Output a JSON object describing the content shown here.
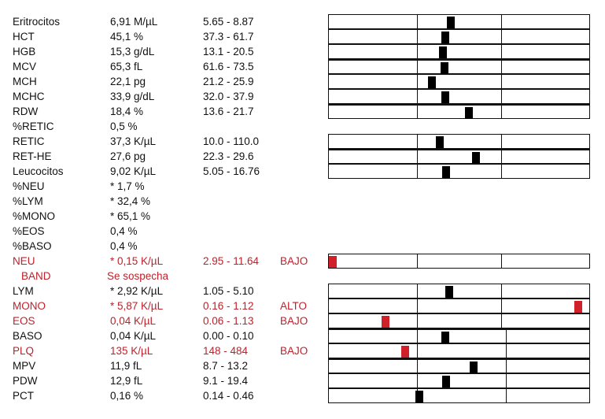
{
  "rows": [
    {
      "name": "Eritrocitos",
      "value": "6,91 M/µL",
      "ref": "5.65 - 8.87",
      "flag": "",
      "abnormal": false,
      "bar": true,
      "pos": 0.468
    },
    {
      "name": "HCT",
      "value": "45,1 %",
      "ref": "37.3 - 61.7",
      "flag": "",
      "abnormal": false,
      "bar": true,
      "pos": 0.447
    },
    {
      "name": "HGB",
      "value": "15,3 g/dL",
      "ref": "13.1 - 20.5",
      "flag": "",
      "abnormal": false,
      "bar": true,
      "pos": 0.435
    },
    {
      "name": "MCV",
      "value": "65,3 fL",
      "ref": "61.6 - 73.5",
      "flag": "",
      "abnormal": false,
      "bar": true,
      "pos": 0.441
    },
    {
      "name": "MCH",
      "value": "22,1 pg",
      "ref": "21.2 - 25.9",
      "flag": "",
      "abnormal": false,
      "bar": true,
      "pos": 0.393
    },
    {
      "name": "MCHC",
      "value": "33,9 g/dL",
      "ref": "32.0 - 37.9",
      "flag": "",
      "abnormal": false,
      "bar": true,
      "pos": 0.447
    },
    {
      "name": "RDW",
      "value": "18,4 %",
      "ref": "13.6 - 21.7",
      "flag": "",
      "abnormal": false,
      "bar": true,
      "pos": 0.538
    },
    {
      "name": "%RETIC",
      "value": "0,5 %",
      "ref": "",
      "flag": "",
      "abnormal": false,
      "bar": false
    },
    {
      "name": "RETIC",
      "value": "37,3 K/µL",
      "ref": "10.0 - 110.0",
      "flag": "",
      "abnormal": false,
      "bar": true,
      "pos": 0.423
    },
    {
      "name": "RET-HE",
      "value": "27,6 pg",
      "ref": "22.3 - 29.6",
      "flag": "",
      "abnormal": false,
      "bar": true,
      "pos": 0.568
    },
    {
      "name": "Leucocitos",
      "value": "9,02 K/µL",
      "ref": "5.05 - 16.76",
      "flag": "",
      "abnormal": false,
      "bar": true,
      "pos": 0.45
    },
    {
      "name": "%NEU",
      "value": "* 1,7 %",
      "ref": "",
      "flag": "",
      "abnormal": false,
      "bar": false
    },
    {
      "name": "%LYM",
      "value": "* 32,4 %",
      "ref": "",
      "flag": "",
      "abnormal": false,
      "bar": false
    },
    {
      "name": "%MONO",
      "value": "* 65,1 %",
      "ref": "",
      "flag": "",
      "abnormal": false,
      "bar": false
    },
    {
      "name": "%EOS",
      "value": "0,4 %",
      "ref": "",
      "flag": "",
      "abnormal": false,
      "bar": false
    },
    {
      "name": "%BASO",
      "value": "0,4 %",
      "ref": "",
      "flag": "",
      "abnormal": false,
      "bar": false
    },
    {
      "name": "NEU",
      "value": "* 0,15 K/µL",
      "ref": "2.95 - 11.64",
      "flag": "BAJO",
      "abnormal": true,
      "bar": true,
      "pos": 0.0
    },
    {
      "name": "BAND",
      "value": "Se sospecha",
      "ref": "",
      "flag": "",
      "abnormal": true,
      "bar": false,
      "indent": true
    },
    {
      "name": "LYM",
      "value": "* 2,92 K/µL",
      "ref": "1.05 - 5.10",
      "flag": "",
      "abnormal": false,
      "bar": true,
      "pos": 0.462
    },
    {
      "name": "MONO",
      "value": "* 5,87 K/µL",
      "ref": "0.16 - 1.12",
      "flag": "ALTO",
      "abnormal": true,
      "bar": true,
      "pos": 0.972
    },
    {
      "name": "EOS",
      "value": "0,04 K/µL",
      "ref": "0.06 - 1.13",
      "flag": "BAJO",
      "abnormal": true,
      "bar": true,
      "pos": 0.21
    },
    {
      "name": "BASO",
      "value": "0,04 K/µL",
      "ref": "0.00 - 0.10",
      "flag": "",
      "abnormal": false,
      "bar": true,
      "pos": 0.447
    },
    {
      "name": "PLQ",
      "value": "135 K/µL",
      "ref": "148 - 484",
      "flag": "BAJO",
      "abnormal": true,
      "bar": true,
      "pos": 0.288
    },
    {
      "name": "MPV",
      "value": "11,9 fL",
      "ref": "8.7 - 13.2",
      "flag": "",
      "abnormal": false,
      "bar": true,
      "pos": 0.559
    },
    {
      "name": "PDW",
      "value": "12,9 fL",
      "ref": "9.1 - 19.4",
      "flag": "",
      "abnormal": false,
      "bar": true,
      "pos": 0.45
    },
    {
      "name": "PCT",
      "value": "0,16 %",
      "ref": "0.14 - 0.46",
      "flag": "",
      "abnormal": false,
      "bar": true,
      "pos": 0.342
    }
  ]
}
